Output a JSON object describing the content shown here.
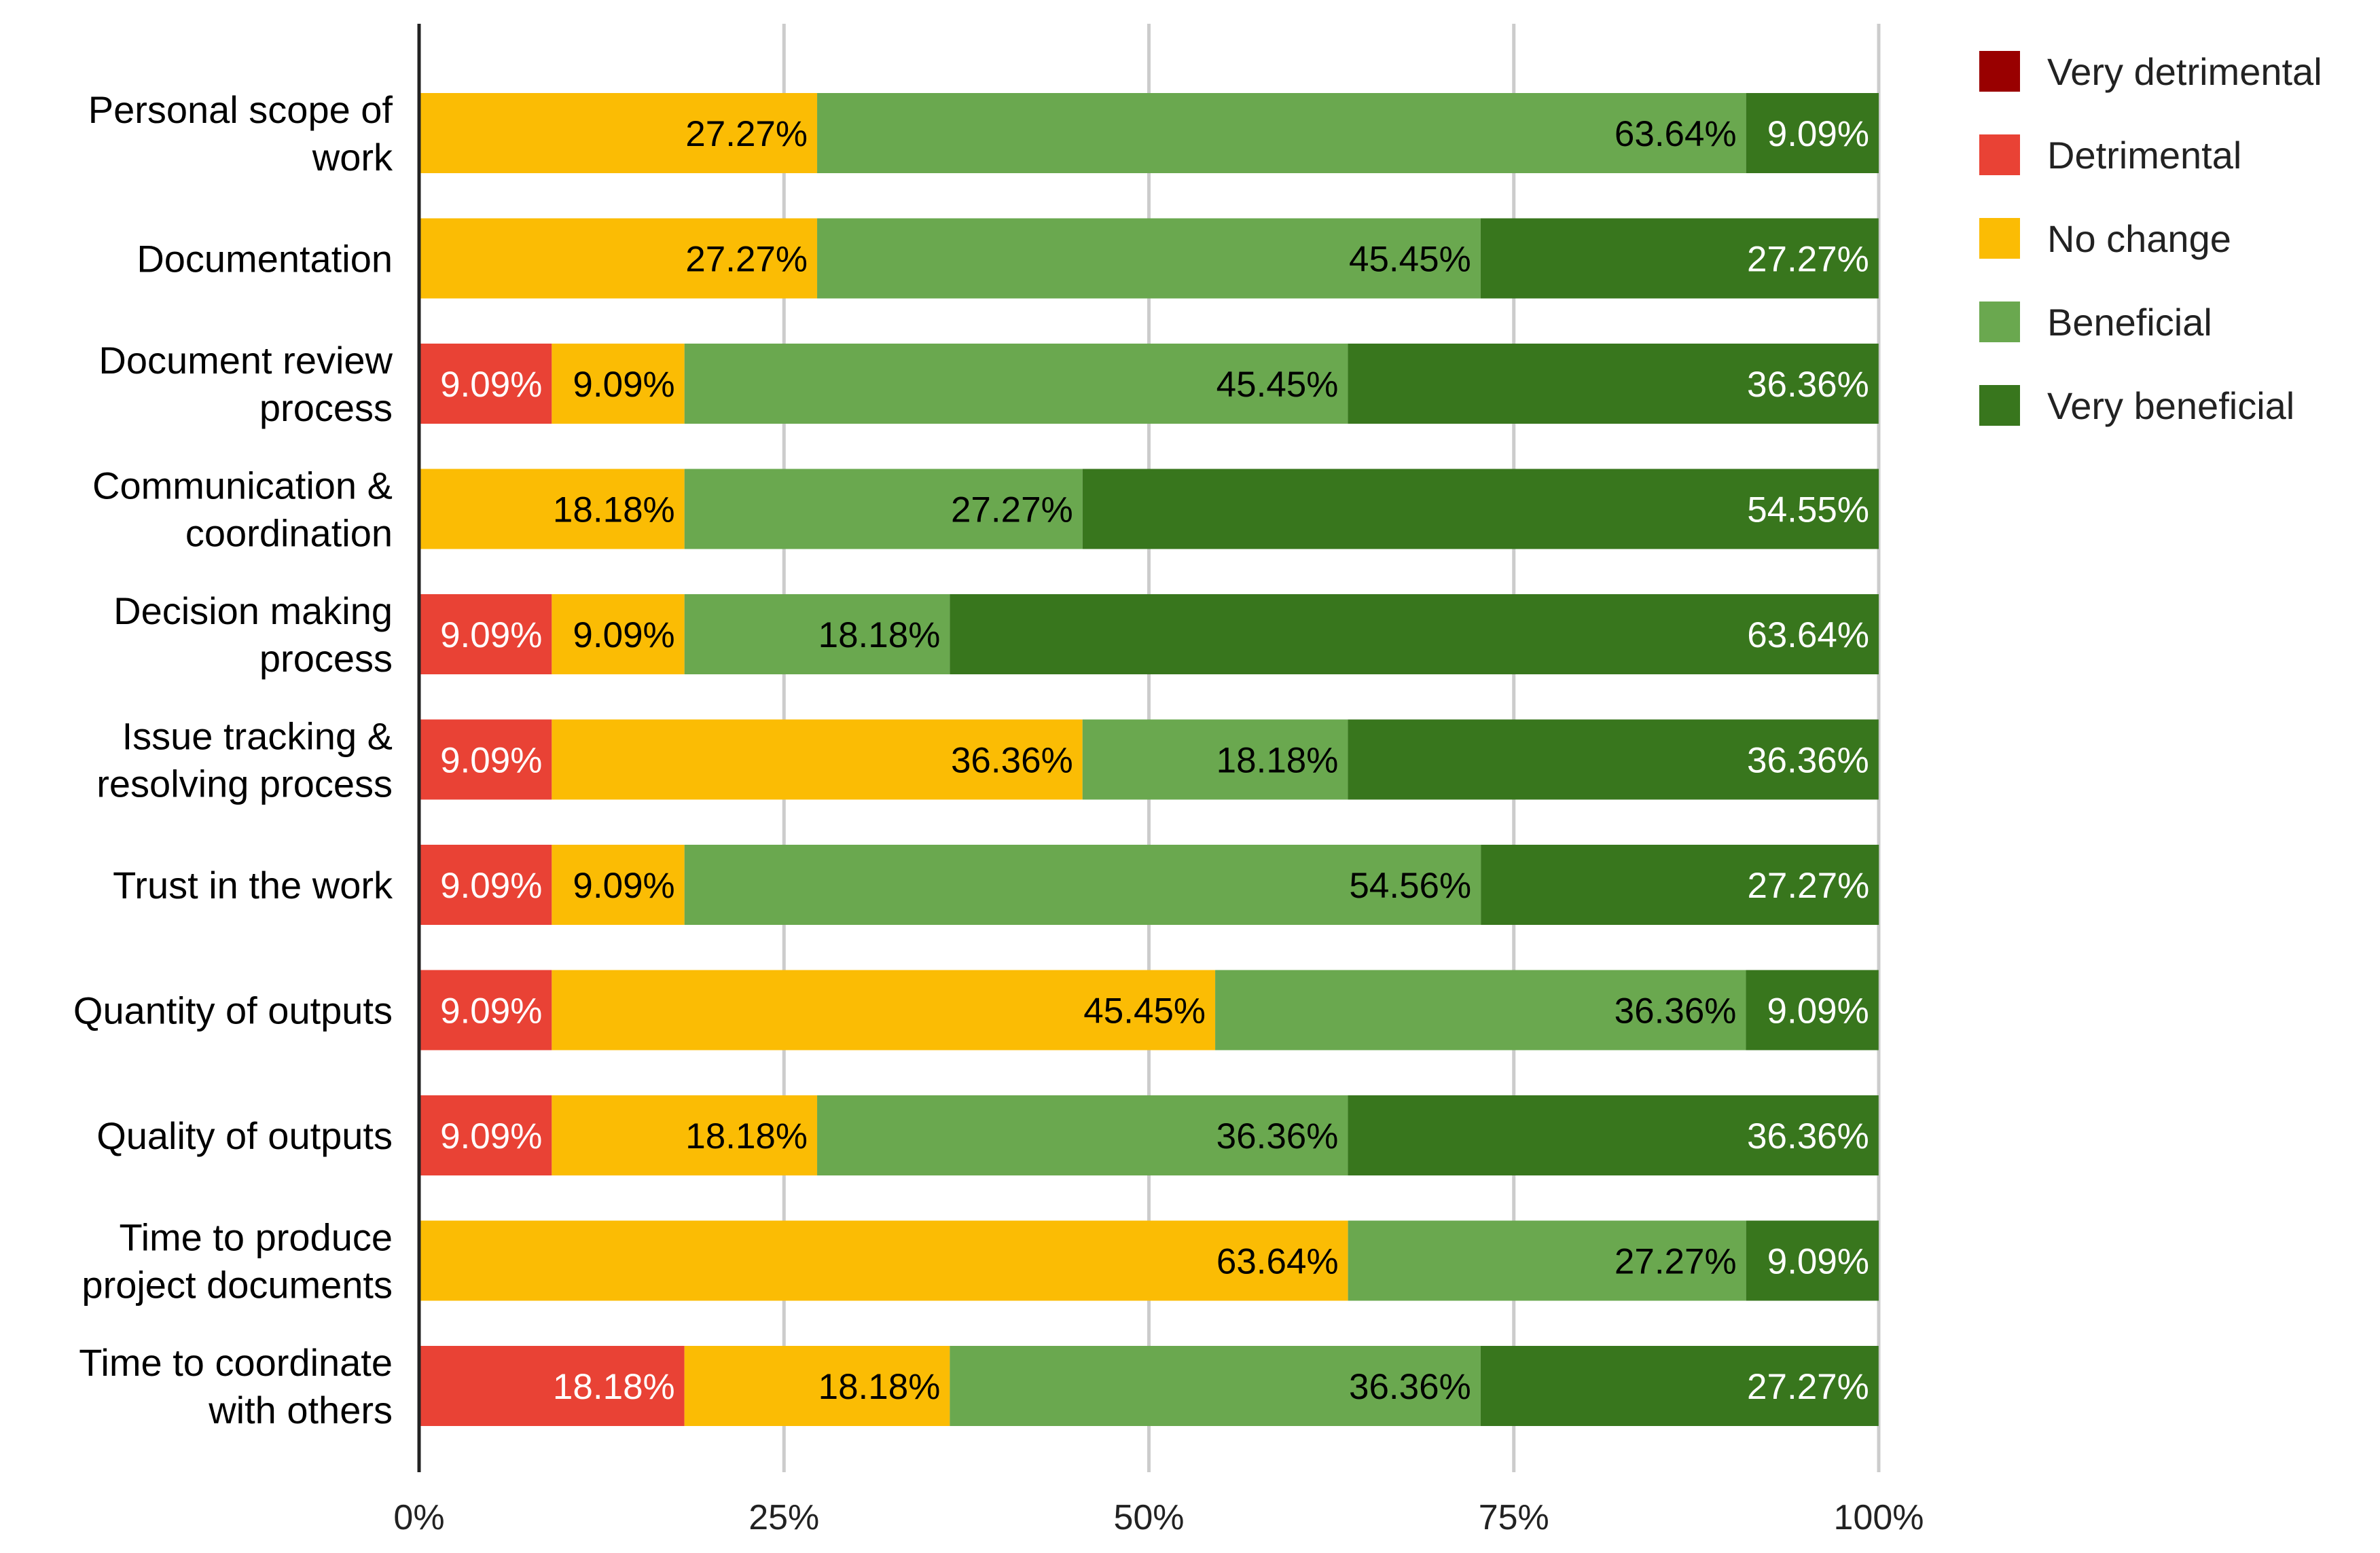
{
  "chart_data": {
    "type": "bar",
    "orientation": "horizontal",
    "stacked": "percent",
    "title": "",
    "xlabel": "",
    "ylabel": "",
    "xlim": [
      0,
      100
    ],
    "xticks": [
      0,
      25,
      50,
      75,
      100
    ],
    "xtick_labels": [
      "0%",
      "25%",
      "50%",
      "75%",
      "100%"
    ],
    "grid": true,
    "legend_position": "top-right",
    "categories": [
      [
        "Personal scope of",
        "work"
      ],
      [
        "Documentation"
      ],
      [
        "Document review",
        "process"
      ],
      [
        "Communication &",
        "coordination"
      ],
      [
        "Decision making",
        "process"
      ],
      [
        "Issue tracking &",
        "resolving process"
      ],
      [
        "Trust in the work"
      ],
      [
        "Quantity of outputs"
      ],
      [
        "Quality of outputs"
      ],
      [
        "Time to produce",
        "project documents"
      ],
      [
        "Time to coordinate",
        "with others"
      ]
    ],
    "series": [
      {
        "name": "Very detrimental",
        "color": "#990000",
        "label_color": "#ffffff",
        "values": [
          0,
          0,
          0,
          0,
          0,
          0,
          0,
          0,
          0,
          0,
          0
        ],
        "labels": [
          "",
          "",
          "",
          "",
          "",
          "",
          "",
          "",
          "",
          "",
          ""
        ]
      },
      {
        "name": "Detrimental",
        "color": "#e94235",
        "label_color": "#ffffff",
        "values": [
          0,
          0,
          9.09,
          0,
          9.09,
          9.09,
          9.09,
          9.09,
          9.09,
          0,
          18.18
        ],
        "labels": [
          "",
          "",
          "9.09%",
          "",
          "9.09%",
          "9.09%",
          "9.09%",
          "9.09%",
          "9.09%",
          "",
          "18.18%"
        ]
      },
      {
        "name": "No change",
        "color": "#fbbc04",
        "label_color": "#000000",
        "values": [
          27.27,
          27.27,
          9.09,
          18.18,
          9.09,
          36.36,
          9.09,
          45.45,
          18.18,
          63.64,
          18.18
        ],
        "labels": [
          "27.27%",
          "27.27%",
          "9.09%",
          "18.18%",
          "9.09%",
          "36.36%",
          "9.09%",
          "45.45%",
          "18.18%",
          "63.64%",
          "18.18%"
        ]
      },
      {
        "name": "Beneficial",
        "color": "#6aa84f",
        "label_color": "#000000",
        "values": [
          63.64,
          45.45,
          45.45,
          27.27,
          18.18,
          18.18,
          54.56,
          36.36,
          36.36,
          27.27,
          36.36
        ],
        "labels": [
          "63.64%",
          "45.45%",
          "45.45%",
          "27.27%",
          "18.18%",
          "18.18%",
          "54.56%",
          "36.36%",
          "36.36%",
          "27.27%",
          "36.36%"
        ]
      },
      {
        "name": "Very beneficial",
        "color": "#38761d",
        "label_color": "#ffffff",
        "values": [
          9.09,
          27.27,
          36.36,
          54.55,
          63.64,
          36.36,
          27.27,
          9.09,
          36.36,
          9.09,
          27.27
        ],
        "labels": [
          "9.09%",
          "27.27%",
          "36.36%",
          "54.55%",
          "63.64%",
          "36.36%",
          "27.27%",
          "9.09%",
          "36.36%",
          "9.09%",
          "27.27%"
        ]
      }
    ]
  }
}
